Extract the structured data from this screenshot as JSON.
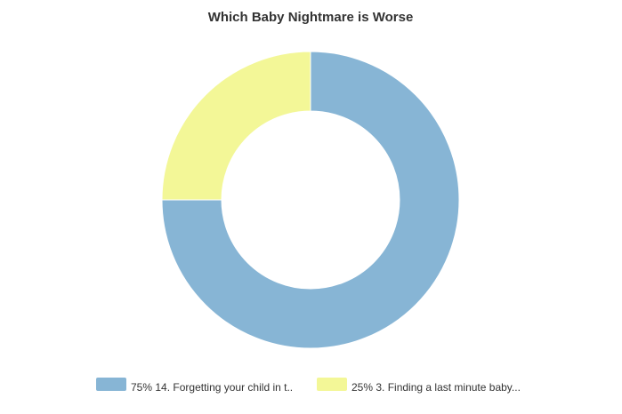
{
  "chart_data": {
    "type": "donut",
    "title": "Which Baby Nightmare is Worse",
    "categories": [
      "14. Forgetting your child in t..",
      "3. Finding a last minute baby..."
    ],
    "values": [
      75,
      25
    ],
    "value_labels": [
      "75%",
      "25%"
    ],
    "colors": [
      "#87b5d5",
      "#f3f797"
    ],
    "legend": "bottom"
  }
}
